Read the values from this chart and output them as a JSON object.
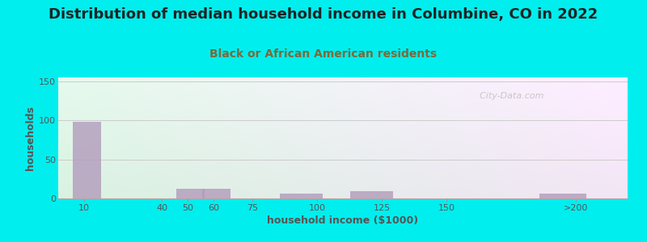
{
  "title": "Distribution of median household income in Columbine, CO in 2022",
  "subtitle": "Black or African American residents",
  "xlabel": "household income ($1000)",
  "ylabel": "households",
  "background_outer": "#00EEEE",
  "bar_color": "#b39dbd",
  "bar_left_edges": [
    5,
    35,
    45,
    55,
    70,
    85,
    112,
    137,
    185
  ],
  "bar_widths": [
    12,
    0,
    12,
    12,
    0,
    18,
    18,
    0,
    20
  ],
  "bar_heights": [
    98,
    0,
    12,
    12,
    0,
    6,
    9,
    0,
    6
  ],
  "xtick_labels": [
    "10",
    "40",
    "50",
    "60",
    "75",
    "100",
    "125",
    "150",
    ">200"
  ],
  "xtick_positions": [
    10,
    40,
    50,
    60,
    75,
    100,
    125,
    150,
    200
  ],
  "xlim": [
    0,
    220
  ],
  "ylim": [
    0,
    155
  ],
  "yticks": [
    0,
    50,
    100,
    150
  ],
  "grid_color": "#cccccc",
  "watermark": "  City-Data.com",
  "title_fontsize": 13,
  "subtitle_fontsize": 10,
  "axis_label_fontsize": 9,
  "tick_fontsize": 8,
  "bg_colors_top": [
    "#d4eedd",
    "#f0eaf8"
  ],
  "bg_colors_bottom": [
    "#e8f8f0",
    "#faf7fc"
  ]
}
